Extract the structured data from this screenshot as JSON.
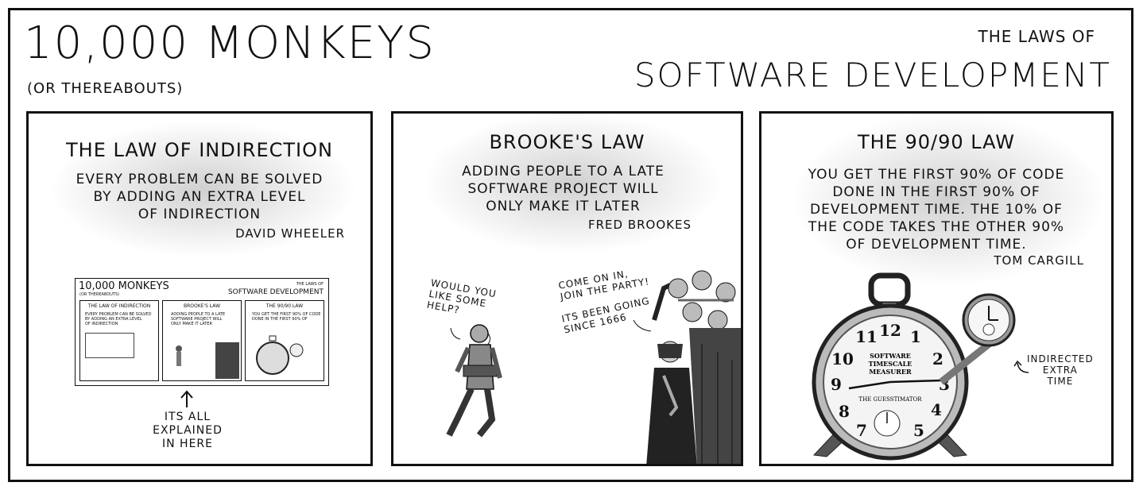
{
  "header": {
    "title": "10,000 MONKEYS",
    "subtitle": "(OR THEREABOUTS)",
    "laws_of": "THE LAWS OF",
    "series_title": "SOFTWARE DEVELOPMENT"
  },
  "panels": [
    {
      "title": "THE LAW OF INDIRECTION",
      "lines": [
        "EVERY PROBLEM CAN BE SOLVED",
        "BY ADDING AN EXTRA LEVEL",
        "OF INDIRECTION"
      ],
      "attribution": "DAVID WHEELER",
      "caption_lines": [
        "ITS ALL",
        "EXPLAINED",
        "IN HERE"
      ]
    },
    {
      "title": "BROOKE'S LAW",
      "lines": [
        "ADDING PEOPLE TO A LATE",
        "SOFTWARE PROJECT WILL",
        "ONLY MAKE IT LATER"
      ],
      "attribution": "FRED BROOKES",
      "bubble_walker": [
        "WOULD YOU",
        "LIKE SOME",
        "HELP?"
      ],
      "bubble_crowd_1": [
        "COME ON IN,",
        "JOIN THE PARTY!"
      ],
      "bubble_crowd_2": [
        "ITS BEEN GOING",
        "SINCE 1666"
      ]
    },
    {
      "title": "THE 90/90 LAW",
      "lines": [
        "YOU GET THE FIRST 90% OF CODE",
        "DONE IN THE FIRST 90% OF",
        "DEVELOPMENT TIME. THE 10% OF",
        "THE CODE TAKES THE OTHER 90%",
        "OF DEVELOPMENT TIME."
      ],
      "attribution": "TOM CARGILL",
      "clock_label_1": "SOFTWARE",
      "clock_label_2": "TIMESCALE",
      "clock_label_3": "MEASURER",
      "clock_label_4": "THE GUESSTIMATOR",
      "callout": [
        "INDIRECTED",
        "EXTRA",
        "TIME"
      ]
    }
  ]
}
